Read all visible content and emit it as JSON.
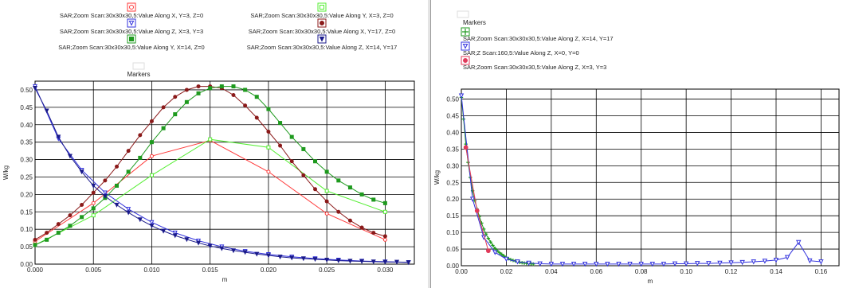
{
  "panels": [
    {
      "legend_header": "Markers",
      "chart_data": {
        "type": "line",
        "title": "",
        "xlabel": "m",
        "ylabel": "W/kg",
        "xlim": [
          0,
          0.0325
        ],
        "ylim": [
          0,
          0.525
        ],
        "xticks": [
          0.0,
          0.005,
          0.01,
          0.015,
          0.02,
          0.025,
          0.03
        ],
        "xtick_labels": [
          "0.000",
          "0.005",
          "0.010",
          "0.015",
          "0.020",
          "0.025",
          "0.030"
        ],
        "yticks": [
          0.0,
          0.05,
          0.1,
          0.15,
          0.2,
          0.25,
          0.3,
          0.35,
          0.4,
          0.45,
          0.5
        ],
        "ytick_labels": [
          "0.00",
          "0.05",
          "0.10",
          "0.15",
          "0.20",
          "0.25",
          "0.30",
          "0.35",
          "0.40",
          "0.45",
          "0.50"
        ],
        "grid": true,
        "legend_placement": "top",
        "series": [
          {
            "name": "SAR;Zoom Scan:30x30x30,5:Value Along X, Y=3, Z=0",
            "color": "#ff3b3b",
            "marker": "circle-open",
            "x": [
              0,
              0.005,
              0.01,
              0.015,
              0.02,
              0.025,
              0.03
            ],
            "y": [
              0.065,
              0.175,
              0.31,
              0.355,
              0.265,
              0.145,
              0.07
            ]
          },
          {
            "name": "SAR;Zoom Scan:30x30x30,5:Value Along Y, X=3, Z=0",
            "color": "#55ee33",
            "marker": "square-open",
            "x": [
              0,
              0.005,
              0.01,
              0.015,
              0.02,
              0.025,
              0.03
            ],
            "y": [
              0.055,
              0.14,
              0.255,
              0.358,
              0.335,
              0.21,
              0.15
            ]
          },
          {
            "name": "SAR;Zoom Scan:30x30x30,5:Value Along Z, X=3, Y=3",
            "color": "#3333dd",
            "marker": "triangle-open",
            "x": [
              0,
              0.002,
              0.004,
              0.006,
              0.008,
              0.01,
              0.012,
              0.014,
              0.016,
              0.018,
              0.02,
              0.022,
              0.024,
              0.026,
              0.028,
              0.03,
              0.032
            ],
            "y": [
              0.51,
              0.36,
              0.27,
              0.205,
              0.158,
              0.12,
              0.09,
              0.067,
              0.05,
              0.037,
              0.028,
              0.021,
              0.016,
              0.012,
              0.009,
              0.007,
              0.005
            ]
          },
          {
            "name": "SAR;Zoom Scan:30x30x30,5:Value Along X, Y=17, Z=0",
            "color": "#8b1a1a",
            "marker": "circle-filled",
            "x": [
              0,
              0.001,
              0.002,
              0.003,
              0.004,
              0.005,
              0.006,
              0.007,
              0.008,
              0.009,
              0.01,
              0.011,
              0.012,
              0.013,
              0.014,
              0.015,
              0.016,
              0.017,
              0.018,
              0.019,
              0.02,
              0.021,
              0.022,
              0.023,
              0.024,
              0.025,
              0.026,
              0.027,
              0.028,
              0.029,
              0.03
            ],
            "y": [
              0.07,
              0.09,
              0.115,
              0.14,
              0.17,
              0.205,
              0.24,
              0.28,
              0.325,
              0.37,
              0.41,
              0.45,
              0.48,
              0.5,
              0.51,
              0.51,
              0.505,
              0.485,
              0.455,
              0.42,
              0.38,
              0.34,
              0.295,
              0.255,
              0.215,
              0.18,
              0.15,
              0.125,
              0.105,
              0.09,
              0.08
            ]
          },
          {
            "name": "SAR;Zoom Scan:30x30x30,5:Value Along Y, X=14, Z=0",
            "color": "#1f9a1f",
            "marker": "square-filled",
            "x": [
              0,
              0.001,
              0.002,
              0.003,
              0.004,
              0.005,
              0.006,
              0.007,
              0.008,
              0.009,
              0.01,
              0.011,
              0.012,
              0.013,
              0.014,
              0.015,
              0.016,
              0.017,
              0.018,
              0.019,
              0.02,
              0.021,
              0.022,
              0.023,
              0.024,
              0.025,
              0.026,
              0.027,
              0.028,
              0.029,
              0.03
            ],
            "y": [
              0.055,
              0.07,
              0.09,
              0.11,
              0.135,
              0.16,
              0.19,
              0.225,
              0.265,
              0.305,
              0.35,
              0.39,
              0.43,
              0.465,
              0.49,
              0.505,
              0.51,
              0.51,
              0.5,
              0.48,
              0.445,
              0.405,
              0.365,
              0.33,
              0.295,
              0.265,
              0.24,
              0.22,
              0.2,
              0.185,
              0.175
            ]
          },
          {
            "name": "SAR;Zoom Scan:30x30x30,5:Value Along Z, X=14, Y=17",
            "color": "#1a1a8b",
            "marker": "triangle-filled",
            "x": [
              0,
              0.001,
              0.002,
              0.003,
              0.004,
              0.005,
              0.006,
              0.007,
              0.008,
              0.009,
              0.01,
              0.011,
              0.012,
              0.013,
              0.014,
              0.015,
              0.016,
              0.017,
              0.018,
              0.019,
              0.02,
              0.021,
              0.022,
              0.023,
              0.024,
              0.025,
              0.026,
              0.027,
              0.028,
              0.029,
              0.03,
              0.031,
              0.032
            ],
            "y": [
              0.505,
              0.44,
              0.365,
              0.31,
              0.265,
              0.225,
              0.195,
              0.17,
              0.148,
              0.128,
              0.11,
              0.095,
              0.082,
              0.071,
              0.061,
              0.052,
              0.045,
              0.039,
              0.034,
              0.029,
              0.025,
              0.021,
              0.018,
              0.016,
              0.014,
              0.012,
              0.01,
              0.009,
              0.008,
              0.007,
              0.006,
              0.006,
              0.005
            ]
          }
        ]
      }
    },
    {
      "legend_header": "Markers",
      "chart_data": {
        "type": "line",
        "title": "",
        "xlabel": "m",
        "ylabel": "W/kg",
        "xlim": [
          0,
          0.168
        ],
        "ylim": [
          0,
          0.53
        ],
        "xticks": [
          0.0,
          0.02,
          0.04,
          0.06,
          0.08,
          0.1,
          0.12,
          0.14,
          0.16
        ],
        "xtick_labels": [
          "0.00",
          "0.02",
          "0.04",
          "0.06",
          "0.08",
          "0.10",
          "0.12",
          "0.14",
          "0.16"
        ],
        "yticks": [
          0.0,
          0.05,
          0.1,
          0.15,
          0.2,
          0.25,
          0.3,
          0.35,
          0.4,
          0.45,
          0.5
        ],
        "ytick_labels": [
          "0.00",
          "0.05",
          "0.10",
          "0.15",
          "0.20",
          "0.25",
          "0.30",
          "0.35",
          "0.40",
          "0.45",
          "0.50"
        ],
        "grid": true,
        "legend_placement": "top-left",
        "series": [
          {
            "name": "SAR;Zoom Scan:30x30x30,5:Value Along Z, X=14, Y=17",
            "color": "#1f9a1f",
            "marker": "plus",
            "x": [
              0,
              0.001,
              0.002,
              0.003,
              0.004,
              0.005,
              0.006,
              0.007,
              0.008,
              0.009,
              0.01,
              0.011,
              0.012,
              0.013,
              0.014,
              0.015,
              0.016,
              0.017,
              0.018,
              0.019,
              0.02,
              0.021,
              0.022,
              0.023,
              0.024,
              0.025,
              0.026,
              0.027,
              0.028,
              0.029,
              0.03,
              0.031,
              0.032
            ],
            "y": [
              0.505,
              0.44,
              0.365,
              0.31,
              0.265,
              0.225,
              0.195,
              0.17,
              0.148,
              0.128,
              0.11,
              0.095,
              0.082,
              0.071,
              0.061,
              0.052,
              0.045,
              0.039,
              0.034,
              0.029,
              0.025,
              0.021,
              0.018,
              0.016,
              0.014,
              0.012,
              0.01,
              0.009,
              0.008,
              0.007,
              0.006,
              0.006,
              0.005
            ]
          },
          {
            "name": "SAR;Z Scan:160,5:Value Along Z, X=0, Y=0",
            "color": "#3333dd",
            "marker": "triangle-open",
            "x": [
              0,
              0.005,
              0.01,
              0.015,
              0.02,
              0.025,
              0.03,
              0.035,
              0.04,
              0.045,
              0.05,
              0.055,
              0.06,
              0.065,
              0.07,
              0.075,
              0.08,
              0.085,
              0.09,
              0.095,
              0.1,
              0.105,
              0.11,
              0.115,
              0.12,
              0.125,
              0.13,
              0.135,
              0.14,
              0.145,
              0.15,
              0.155,
              0.16
            ],
            "y": [
              0.51,
              0.2,
              0.085,
              0.04,
              0.02,
              0.012,
              0.008,
              0.006,
              0.005,
              0.005,
              0.005,
              0.005,
              0.005,
              0.005,
              0.005,
              0.005,
              0.005,
              0.005,
              0.005,
              0.006,
              0.006,
              0.007,
              0.007,
              0.008,
              0.009,
              0.01,
              0.012,
              0.014,
              0.017,
              0.025,
              0.07,
              0.015,
              0.012
            ]
          },
          {
            "name": "SAR;Zoom Scan:30x30x30,5:Value Along Z, X=3, Y=3",
            "color": "#e03a5a",
            "marker": "circle-filled",
            "x": [
              0.002,
              0.007,
              0.012
            ],
            "y": [
              0.355,
              0.165,
              0.045
            ]
          }
        ]
      }
    }
  ]
}
